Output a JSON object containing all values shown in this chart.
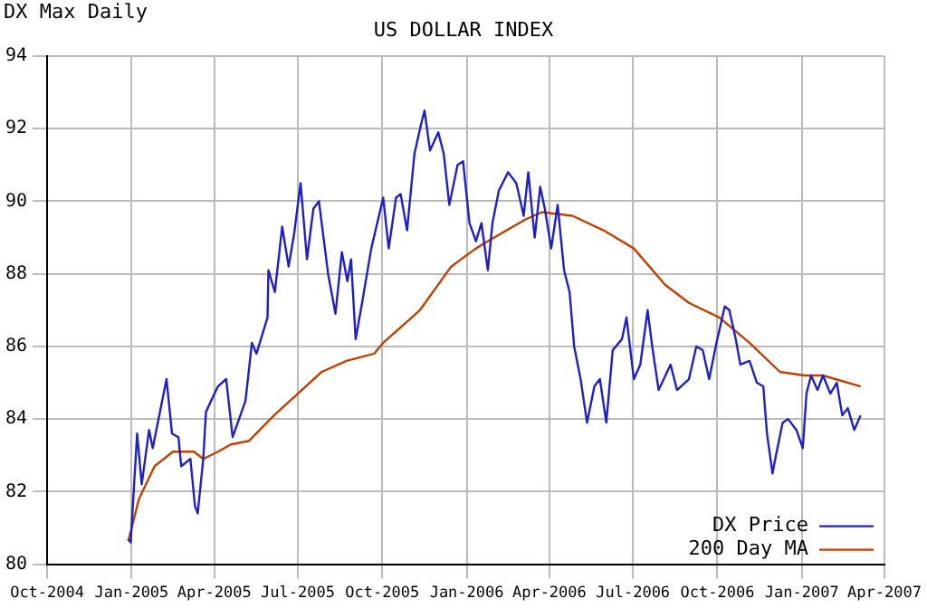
{
  "chart_data": {
    "type": "line",
    "title": "US DOLLAR INDEX",
    "subtitle": "DX Max Daily",
    "xlim": [
      "2004-10-01",
      "2007-04-01"
    ],
    "xticks": [
      {
        "value": "2004-10-01",
        "label": "Oct-2004"
      },
      {
        "value": "2005-01-01",
        "label": "Jan-2005"
      },
      {
        "value": "2005-04-01",
        "label": "Apr-2005"
      },
      {
        "value": "2005-07-01",
        "label": "Jul-2005"
      },
      {
        "value": "2005-10-01",
        "label": "Oct-2005"
      },
      {
        "value": "2006-01-01",
        "label": "Jan-2006"
      },
      {
        "value": "2006-04-01",
        "label": "Apr-2006"
      },
      {
        "value": "2006-07-01",
        "label": "Jul-2006"
      },
      {
        "value": "2006-10-01",
        "label": "Oct-2006"
      },
      {
        "value": "2007-01-01",
        "label": "Jan-2007"
      },
      {
        "value": "2007-04-01",
        "label": "Apr-2007"
      }
    ],
    "ylim": [
      80,
      94
    ],
    "yticks": [
      80,
      82,
      84,
      86,
      88,
      90,
      92,
      94
    ],
    "grid": true,
    "legend": "bottom right",
    "marker": "none",
    "line_style": "solid",
    "series": [
      {
        "name": "DX Price",
        "color": "#2020c0",
        "x": [
          "2004-12-28",
          "2004-12-31",
          "2005-01-03",
          "2005-01-07",
          "2005-01-12",
          "2005-01-20",
          "2005-01-24",
          "2005-02-08",
          "2005-02-14",
          "2005-02-21",
          "2005-02-24",
          "2005-03-06",
          "2005-03-11",
          "2005-03-14",
          "2005-03-20",
          "2005-03-23",
          "2005-04-05",
          "2005-04-14",
          "2005-04-21",
          "2005-05-05",
          "2005-05-12",
          "2005-05-17",
          "2005-05-29",
          "2005-05-30",
          "2005-06-06",
          "2005-06-14",
          "2005-06-21",
          "2005-06-27",
          "2005-07-04",
          "2005-07-11",
          "2005-07-18",
          "2005-07-24",
          "2005-08-03",
          "2005-08-11",
          "2005-08-18",
          "2005-08-24",
          "2005-08-28",
          "2005-09-02",
          "2005-09-09",
          "2005-09-19",
          "2005-10-02",
          "2005-10-08",
          "2005-10-16",
          "2005-10-21",
          "2005-10-28",
          "2005-11-05",
          "2005-11-12",
          "2005-11-16",
          "2005-11-22",
          "2005-12-01",
          "2005-12-07",
          "2005-12-13",
          "2005-12-22",
          "2005-12-28",
          "2006-01-04",
          "2006-01-11",
          "2006-01-17",
          "2006-01-24",
          "2006-01-29",
          "2006-02-05",
          "2006-02-15",
          "2006-02-24",
          "2006-03-04",
          "2006-03-09",
          "2006-03-16",
          "2006-03-22",
          "2006-03-27",
          "2006-04-03",
          "2006-04-10",
          "2006-04-17",
          "2006-04-23",
          "2006-04-28",
          "2006-05-05",
          "2006-05-12",
          "2006-05-20",
          "2006-05-26",
          "2006-06-02",
          "2006-06-09",
          "2006-06-19",
          "2006-06-24",
          "2006-07-02",
          "2006-07-09",
          "2006-07-17",
          "2006-07-22",
          "2006-07-29",
          "2006-08-11",
          "2006-08-18",
          "2006-08-31",
          "2006-09-08",
          "2006-09-15",
          "2006-09-22",
          "2006-09-30",
          "2006-10-09",
          "2006-10-14",
          "2006-10-21",
          "2006-10-26",
          "2006-11-05",
          "2006-11-13",
          "2006-11-20",
          "2006-11-24",
          "2006-11-30",
          "2006-12-03",
          "2006-12-11",
          "2006-12-17",
          "2006-12-26",
          "2007-01-02",
          "2007-01-06",
          "2007-01-11",
          "2007-01-18",
          "2007-01-24",
          "2007-02-01",
          "2007-02-08",
          "2007-02-14",
          "2007-02-20",
          "2007-02-27",
          "2007-03-06"
        ],
        "values": [
          80.7,
          80.6,
          81.9,
          83.6,
          82.2,
          83.7,
          83.2,
          85.1,
          83.6,
          83.5,
          82.7,
          82.9,
          81.6,
          81.4,
          82.9,
          84.2,
          84.9,
          85.1,
          83.5,
          84.5,
          86.1,
          85.8,
          86.8,
          88.1,
          87.5,
          89.3,
          88.2,
          89.1,
          90.5,
          88.4,
          89.8,
          90.0,
          88.0,
          86.9,
          88.6,
          87.8,
          88.4,
          86.2,
          87.2,
          88.7,
          90.1,
          88.7,
          90.1,
          90.2,
          89.2,
          91.3,
          92.1,
          92.5,
          91.4,
          91.9,
          91.3,
          89.9,
          91.0,
          91.1,
          89.4,
          88.9,
          89.4,
          88.1,
          89.4,
          90.3,
          90.8,
          90.5,
          89.6,
          90.8,
          89.0,
          90.4,
          89.8,
          88.7,
          89.9,
          88.1,
          87.5,
          86.0,
          85.1,
          83.9,
          84.9,
          85.1,
          83.9,
          85.9,
          86.2,
          86.8,
          85.1,
          85.5,
          87.0,
          86.0,
          84.8,
          85.5,
          84.8,
          85.1,
          86.0,
          85.9,
          85.1,
          86.1,
          87.1,
          87.0,
          86.2,
          85.5,
          85.6,
          85.0,
          84.9,
          83.6,
          82.5,
          82.9,
          83.9,
          84.0,
          83.7,
          83.2,
          84.7,
          85.2,
          84.8,
          85.2,
          84.7,
          85.0,
          84.1,
          84.3,
          83.7,
          84.1
        ]
      },
      {
        "name": "200 Day MA",
        "color": "#c04000",
        "x": [
          "2004-12-29",
          "2005-01-09",
          "2005-01-26",
          "2005-02-15",
          "2005-03-10",
          "2005-03-20",
          "2005-04-05",
          "2005-04-19",
          "2005-05-09",
          "2005-06-05",
          "2005-07-01",
          "2005-07-27",
          "2005-08-23",
          "2005-09-22",
          "2005-10-02",
          "2005-11-11",
          "2005-12-15",
          "2006-01-11",
          "2006-01-24",
          "2006-03-06",
          "2006-03-24",
          "2006-04-26",
          "2006-05-30",
          "2006-07-02",
          "2006-08-05",
          "2006-08-31",
          "2006-10-03",
          "2006-11-05",
          "2006-12-08",
          "2007-01-04",
          "2007-01-24",
          "2007-03-06"
        ],
        "values": [
          80.7,
          81.8,
          82.7,
          83.1,
          83.1,
          82.9,
          83.1,
          83.3,
          83.4,
          84.1,
          84.7,
          85.3,
          85.6,
          85.8,
          86.1,
          87.0,
          88.2,
          88.7,
          88.9,
          89.5,
          89.7,
          89.6,
          89.2,
          88.7,
          87.7,
          87.2,
          86.8,
          86.1,
          85.3,
          85.2,
          85.2,
          84.9
        ]
      }
    ]
  }
}
